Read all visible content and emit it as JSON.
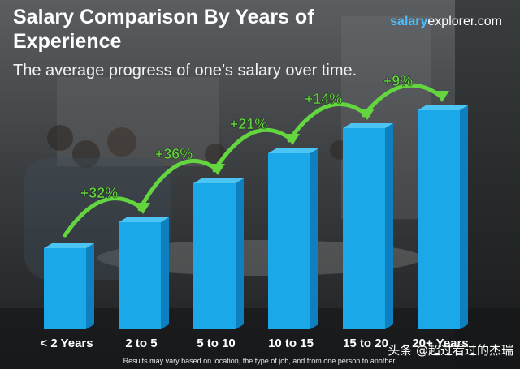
{
  "header": {
    "title": "Salary Comparison By Years of Experience",
    "subtitle": "The average progress of one’s salary over time."
  },
  "brand": {
    "part1": "salary",
    "part2": "explorer.com"
  },
  "footnote": "Results may vary based on location, the type of job, and from one person to another.",
  "watermark": "头条 @超过看过的杰瑞",
  "colors": {
    "bar_front": "#1ba8e8",
    "bar_side": "#0e7fbf",
    "bar_top": "#4cc4f4",
    "arrow": "#63d63f",
    "background": "#2e3134"
  },
  "chart_data": {
    "type": "bar",
    "categories": [
      "< 2 Years",
      "2 to 5",
      "5 to 10",
      "10 to 15",
      "15 to 20",
      "20+ Years"
    ],
    "values": [
      100,
      132,
      180,
      217,
      248,
      270
    ],
    "changes": [
      "+32%",
      "+36%",
      "+21%",
      "+14%",
      "+9%"
    ],
    "title": "Salary Comparison By Years of Experience",
    "subtitle": "The average progress of one’s salary over time.",
    "xlabel": "",
    "ylabel": "",
    "grid": false,
    "legend": "none"
  }
}
